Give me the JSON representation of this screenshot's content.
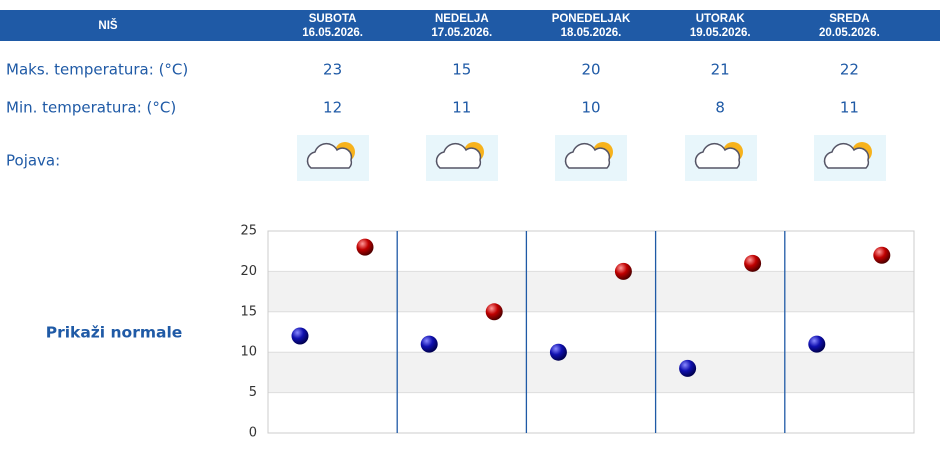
{
  "header": {
    "city": "NIŠ",
    "days": [
      {
        "name": "SUBOTA",
        "date": "16.05.2026."
      },
      {
        "name": "NEDELJA",
        "date": "17.05.2026."
      },
      {
        "name": "PONEDELJAK",
        "date": "18.05.2026."
      },
      {
        "name": "UTORAK",
        "date": "19.05.2026."
      },
      {
        "name": "SREDA",
        "date": "20.05.2026."
      }
    ]
  },
  "rows": {
    "max_label": "Maks. temperatura: (°C)",
    "min_label": "Min. temperatura: (°C)",
    "phenomenon_label": "Pojava:"
  },
  "link": "Prikaži normale",
  "chart_data": {
    "type": "dot",
    "series": [
      {
        "color": "#1010b0",
        "values": [
          12,
          11,
          10,
          8,
          11
        ]
      },
      {
        "color": "#c00000",
        "values": [
          23,
          15,
          20,
          21,
          22
        ]
      }
    ],
    "ylim": [
      0,
      25
    ],
    "yticks": [
      0,
      5,
      10,
      15,
      20,
      25
    ],
    "grid": true
  }
}
